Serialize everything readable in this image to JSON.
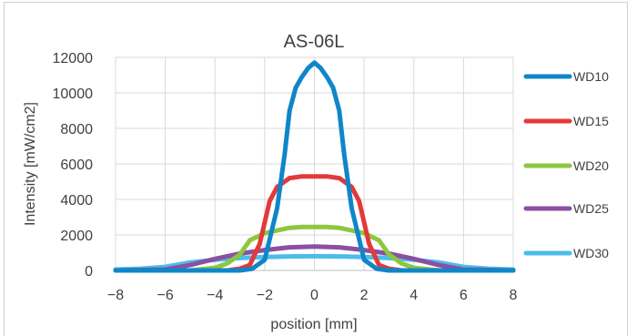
{
  "chart_data": {
    "type": "line",
    "title": "AS-06L",
    "xlabel": "position [mm]",
    "ylabel": "Intensity [mW/cm2]",
    "xlim": [
      -8,
      8
    ],
    "ylim": [
      0,
      12000
    ],
    "xticks": [
      -8,
      -6,
      -4,
      -2,
      0,
      2,
      4,
      6,
      8
    ],
    "yticks": [
      0,
      2000,
      4000,
      6000,
      8000,
      10000,
      12000
    ],
    "xtick_labels": [
      "−8",
      "−6",
      "−4",
      "−2",
      "0",
      "2",
      "4",
      "6",
      "8"
    ],
    "ytick_labels": [
      "0",
      "2000",
      "4000",
      "6000",
      "8000",
      "10000",
      "12000"
    ],
    "grid": true,
    "legend_position": "right",
    "series": [
      {
        "name": "WD10",
        "color": "#0F86C8",
        "x": [
          -8,
          -3,
          -2.5,
          -2,
          -1.5,
          -1.2,
          -1,
          -0.75,
          -0.5,
          -0.25,
          0,
          0.25,
          0.5,
          0.75,
          1,
          1.2,
          1.5,
          2,
          2.5,
          3,
          8
        ],
        "y": [
          0,
          0,
          100,
          600,
          3500,
          6500,
          9000,
          10300,
          10900,
          11400,
          11700,
          11400,
          10900,
          10300,
          9000,
          6500,
          3500,
          600,
          100,
          0,
          0
        ]
      },
      {
        "name": "WD15",
        "color": "#E23A3A",
        "x": [
          -8,
          -3.5,
          -3,
          -2.6,
          -2.2,
          -1.8,
          -1.5,
          -1.2,
          -1,
          -0.5,
          0,
          0.5,
          1,
          1.2,
          1.5,
          1.8,
          2.2,
          2.6,
          3,
          3.5,
          8
        ],
        "y": [
          0,
          0,
          100,
          300,
          1500,
          3900,
          4700,
          5000,
          5200,
          5300,
          5300,
          5300,
          5200,
          5000,
          4700,
          3900,
          1500,
          300,
          100,
          0,
          0
        ]
      },
      {
        "name": "WD20",
        "color": "#8DC73F",
        "x": [
          -8,
          -5,
          -4,
          -3.5,
          -3,
          -2.6,
          -2,
          -1.5,
          -1,
          -0.5,
          0,
          0.5,
          1,
          1.5,
          2,
          2.6,
          3,
          3.5,
          4,
          5,
          8
        ],
        "y": [
          0,
          0,
          150,
          400,
          900,
          1700,
          2100,
          2250,
          2400,
          2450,
          2450,
          2450,
          2400,
          2250,
          2100,
          1700,
          900,
          400,
          150,
          0,
          0
        ]
      },
      {
        "name": "WD25",
        "color": "#8B4FA3",
        "x": [
          -8,
          -6,
          -5,
          -4,
          -3,
          -2,
          -1,
          0,
          1,
          2,
          3,
          4,
          5,
          6,
          8
        ],
        "y": [
          0,
          50,
          300,
          650,
          950,
          1150,
          1300,
          1350,
          1300,
          1150,
          950,
          650,
          300,
          50,
          0
        ]
      },
      {
        "name": "WD30",
        "color": "#4CBDEB",
        "x": [
          -8,
          -7,
          -6,
          -5,
          -4,
          -3,
          -2,
          -1,
          0,
          1,
          2,
          3,
          4,
          5,
          6,
          7,
          8
        ],
        "y": [
          50,
          100,
          200,
          450,
          600,
          700,
          760,
          790,
          800,
          790,
          760,
          700,
          600,
          450,
          200,
          100,
          50
        ]
      }
    ]
  }
}
